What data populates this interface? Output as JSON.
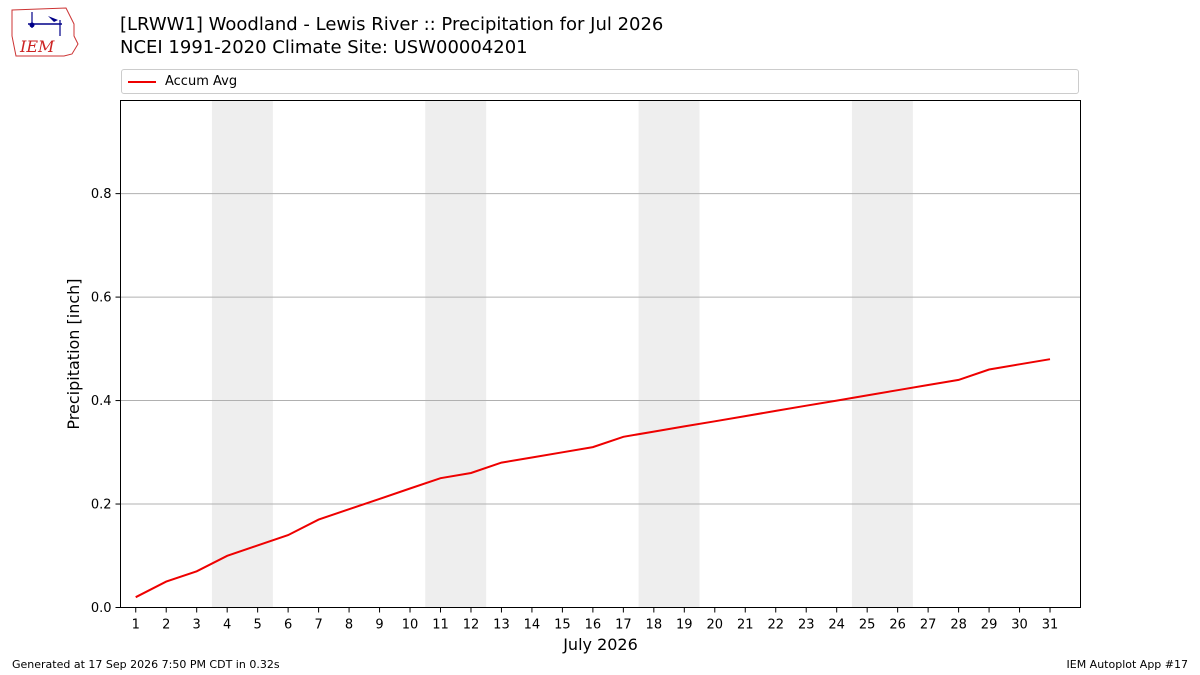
{
  "header": {
    "title_line1": "[LRWW1] Woodland - Lewis River :: Precipitation for Jul 2026",
    "title_line2": "NCEI 1991-2020 Climate Site: USW00004201"
  },
  "logo": {
    "text": "IEM",
    "icon": "iem-logo-icon"
  },
  "footer": {
    "left": "Generated at 17 Sep 2026 7:50 PM CDT in 0.32s",
    "right": "IEM Autoplot App #17"
  },
  "colors": {
    "series": "#ee0000",
    "weekend_band": "#eeeeee",
    "grid": "#b0b0b0"
  },
  "chart_data": {
    "type": "line",
    "xlabel": "July 2026",
    "ylabel": "Precipitation [inch]",
    "ylim": [
      0,
      0.98
    ],
    "yticks": [
      0.0,
      0.2,
      0.4,
      0.6,
      0.8
    ],
    "ytick_labels": [
      "0.0",
      "0.2",
      "0.4",
      "0.6",
      "0.8"
    ],
    "xlim": [
      0.5,
      32.0
    ],
    "grid": "horizontal",
    "legend": "top",
    "weekend_bands": [
      [
        3.5,
        5.5
      ],
      [
        10.5,
        12.5
      ],
      [
        17.5,
        19.5
      ],
      [
        24.5,
        26.5
      ]
    ],
    "x": [
      1,
      2,
      3,
      4,
      5,
      6,
      7,
      8,
      9,
      10,
      11,
      12,
      13,
      14,
      15,
      16,
      17,
      18,
      19,
      20,
      21,
      22,
      23,
      24,
      25,
      26,
      27,
      28,
      29,
      30,
      31
    ],
    "x_tick_labels": [
      "1",
      "2",
      "3",
      "4",
      "5",
      "6",
      "7",
      "8",
      "9",
      "10",
      "11",
      "12",
      "13",
      "14",
      "15",
      "16",
      "17",
      "18",
      "19",
      "20",
      "21",
      "22",
      "23",
      "24",
      "25",
      "26",
      "27",
      "28",
      "29",
      "30",
      "31"
    ],
    "series": [
      {
        "name": "Accum Avg",
        "values": [
          0.02,
          0.05,
          0.07,
          0.1,
          0.12,
          0.14,
          0.17,
          0.19,
          0.21,
          0.23,
          0.25,
          0.26,
          0.28,
          0.29,
          0.3,
          0.31,
          0.33,
          0.34,
          0.35,
          0.36,
          0.37,
          0.38,
          0.39,
          0.4,
          0.41,
          0.42,
          0.43,
          0.44,
          0.46,
          0.47,
          0.48
        ]
      }
    ]
  }
}
